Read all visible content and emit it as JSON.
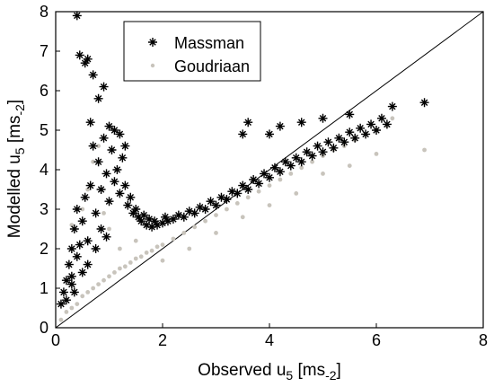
{
  "chart_data": {
    "type": "scatter",
    "xlabel": {
      "main": "Observed u",
      "sub": "5",
      "unit_open": " [ms",
      "unit_sub": "-2",
      "unit_close": "]"
    },
    "ylabel": {
      "main": "Modelled u",
      "sub": "5",
      "unit_open": " [ms",
      "unit_sub": "-2",
      "unit_close": "]"
    },
    "xlim": [
      0,
      8
    ],
    "ylim": [
      0,
      8
    ],
    "xticks": [
      "0",
      "2",
      "4",
      "6",
      "8"
    ],
    "yticks": [
      "0",
      "1",
      "2",
      "3",
      "4",
      "5",
      "6",
      "7",
      "8"
    ],
    "grid": false,
    "legend_position": "top-left",
    "reference_line": {
      "x": [
        0,
        8
      ],
      "y": [
        0,
        8
      ]
    },
    "series": [
      {
        "name": "Massman",
        "marker": "star",
        "color": "#000000",
        "points": [
          [
            0.1,
            0.6
          ],
          [
            0.15,
            0.9
          ],
          [
            0.2,
            1.2
          ],
          [
            0.25,
            1.6
          ],
          [
            0.3,
            2.0
          ],
          [
            0.3,
            1.1
          ],
          [
            0.35,
            2.5
          ],
          [
            0.35,
            0.9
          ],
          [
            0.4,
            7.9
          ],
          [
            0.4,
            3.0
          ],
          [
            0.4,
            1.8
          ],
          [
            0.45,
            6.9
          ],
          [
            0.5,
            2.7
          ],
          [
            0.5,
            1.4
          ],
          [
            0.55,
            6.7
          ],
          [
            0.55,
            3.3
          ],
          [
            0.6,
            6.8
          ],
          [
            0.6,
            2.2
          ],
          [
            0.65,
            5.2
          ],
          [
            0.65,
            3.6
          ],
          [
            0.7,
            6.4
          ],
          [
            0.7,
            4.6
          ],
          [
            0.75,
            2.9
          ],
          [
            0.8,
            5.8
          ],
          [
            0.8,
            4.2
          ],
          [
            0.85,
            3.5
          ],
          [
            0.85,
            2.5
          ],
          [
            0.9,
            6.1
          ],
          [
            0.9,
            4.8
          ],
          [
            0.95,
            3.9
          ],
          [
            1.0,
            5.1
          ],
          [
            1.0,
            3.2
          ],
          [
            1.05,
            4.5
          ],
          [
            1.1,
            3.7
          ],
          [
            1.1,
            5.0
          ],
          [
            1.15,
            4.0
          ],
          [
            1.2,
            3.4
          ],
          [
            1.25,
            4.3
          ],
          [
            1.3,
            3.6
          ],
          [
            1.35,
            3.1
          ],
          [
            1.4,
            3.3
          ],
          [
            1.45,
            2.9
          ],
          [
            1.5,
            3.0
          ],
          [
            1.55,
            2.8
          ],
          [
            1.6,
            2.7
          ],
          [
            1.65,
            2.85
          ],
          [
            1.7,
            2.6
          ],
          [
            1.75,
            2.75
          ],
          [
            1.8,
            2.55
          ],
          [
            1.85,
            2.7
          ],
          [
            1.9,
            2.6
          ],
          [
            2.0,
            2.65
          ],
          [
            2.05,
            2.8
          ],
          [
            2.1,
            2.7
          ],
          [
            2.2,
            2.75
          ],
          [
            2.3,
            2.85
          ],
          [
            2.4,
            2.8
          ],
          [
            2.5,
            2.95
          ],
          [
            2.6,
            2.9
          ],
          [
            2.7,
            3.05
          ],
          [
            2.8,
            3.0
          ],
          [
            2.9,
            3.2
          ],
          [
            3.0,
            3.1
          ],
          [
            3.1,
            3.3
          ],
          [
            3.2,
            3.25
          ],
          [
            3.3,
            3.45
          ],
          [
            3.4,
            3.4
          ],
          [
            3.5,
            3.6
          ],
          [
            3.6,
            3.5
          ],
          [
            3.7,
            3.75
          ],
          [
            3.8,
            3.65
          ],
          [
            3.9,
            3.9
          ],
          [
            4.0,
            3.8
          ],
          [
            4.1,
            4.05
          ],
          [
            4.2,
            3.95
          ],
          [
            4.3,
            4.2
          ],
          [
            4.4,
            4.1
          ],
          [
            4.5,
            4.3
          ],
          [
            4.6,
            4.2
          ],
          [
            4.7,
            4.45
          ],
          [
            4.8,
            4.35
          ],
          [
            4.9,
            4.6
          ],
          [
            5.0,
            4.45
          ],
          [
            5.1,
            4.7
          ],
          [
            5.2,
            4.55
          ],
          [
            5.3,
            4.8
          ],
          [
            5.4,
            4.7
          ],
          [
            5.5,
            4.95
          ],
          [
            5.6,
            4.8
          ],
          [
            5.7,
            5.05
          ],
          [
            5.8,
            4.9
          ],
          [
            5.9,
            5.15
          ],
          [
            6.0,
            5.0
          ],
          [
            6.1,
            5.3
          ],
          [
            6.2,
            5.15
          ],
          [
            6.3,
            5.6
          ],
          [
            6.9,
            5.7
          ],
          [
            3.5,
            4.9
          ],
          [
            3.6,
            5.2
          ],
          [
            4.0,
            4.9
          ],
          [
            4.2,
            5.1
          ],
          [
            4.6,
            5.2
          ],
          [
            5.0,
            5.3
          ],
          [
            5.5,
            5.4
          ],
          [
            1.2,
            4.9
          ],
          [
            1.3,
            4.6
          ],
          [
            0.2,
            0.7
          ],
          [
            0.3,
            1.3
          ],
          [
            0.45,
            2.1
          ],
          [
            0.6,
            1.6
          ],
          [
            0.75,
            2.0
          ],
          [
            0.95,
            2.3
          ]
        ]
      },
      {
        "name": "Goudriaan",
        "marker": "dot",
        "color": "#c8c4bc",
        "points": [
          [
            0.1,
            0.2
          ],
          [
            0.2,
            0.4
          ],
          [
            0.3,
            0.5
          ],
          [
            0.4,
            0.6
          ],
          [
            0.5,
            0.8
          ],
          [
            0.6,
            0.9
          ],
          [
            0.7,
            1.0
          ],
          [
            0.8,
            1.1
          ],
          [
            0.9,
            1.2
          ],
          [
            1.0,
            1.3
          ],
          [
            1.1,
            1.4
          ],
          [
            1.2,
            1.5
          ],
          [
            1.3,
            1.55
          ],
          [
            1.4,
            1.65
          ],
          [
            1.5,
            1.75
          ],
          [
            1.6,
            1.8
          ],
          [
            1.7,
            1.9
          ],
          [
            1.8,
            1.95
          ],
          [
            1.9,
            2.05
          ],
          [
            2.0,
            2.1
          ],
          [
            2.2,
            2.25
          ],
          [
            2.4,
            2.4
          ],
          [
            2.6,
            2.55
          ],
          [
            2.8,
            2.7
          ],
          [
            3.0,
            2.85
          ],
          [
            3.2,
            3.0
          ],
          [
            3.4,
            3.15
          ],
          [
            3.6,
            3.3
          ],
          [
            3.8,
            3.45
          ],
          [
            4.0,
            3.6
          ],
          [
            4.2,
            3.75
          ],
          [
            4.4,
            3.9
          ],
          [
            4.6,
            4.05
          ],
          [
            4.8,
            4.2
          ],
          [
            5.0,
            4.35
          ],
          [
            5.2,
            4.5
          ],
          [
            5.4,
            4.6
          ],
          [
            5.6,
            4.75
          ],
          [
            5.8,
            4.9
          ],
          [
            6.0,
            5.0
          ],
          [
            6.2,
            5.1
          ],
          [
            6.3,
            5.3
          ],
          [
            6.9,
            4.5
          ],
          [
            0.3,
            2.6
          ],
          [
            0.5,
            3.0
          ],
          [
            0.6,
            3.5
          ],
          [
            0.7,
            4.2
          ],
          [
            0.8,
            4.6
          ],
          [
            0.9,
            2.9
          ],
          [
            1.0,
            2.5
          ],
          [
            0.4,
            1.8
          ],
          [
            0.6,
            2.2
          ],
          [
            1.2,
            2.0
          ],
          [
            1.5,
            2.2
          ],
          [
            2.0,
            1.7
          ],
          [
            2.5,
            2.0
          ],
          [
            3.0,
            2.4
          ],
          [
            3.5,
            2.8
          ],
          [
            4.0,
            3.1
          ],
          [
            4.5,
            3.4
          ],
          [
            5.0,
            3.9
          ],
          [
            5.5,
            4.1
          ],
          [
            6.0,
            4.4
          ]
        ]
      }
    ]
  }
}
